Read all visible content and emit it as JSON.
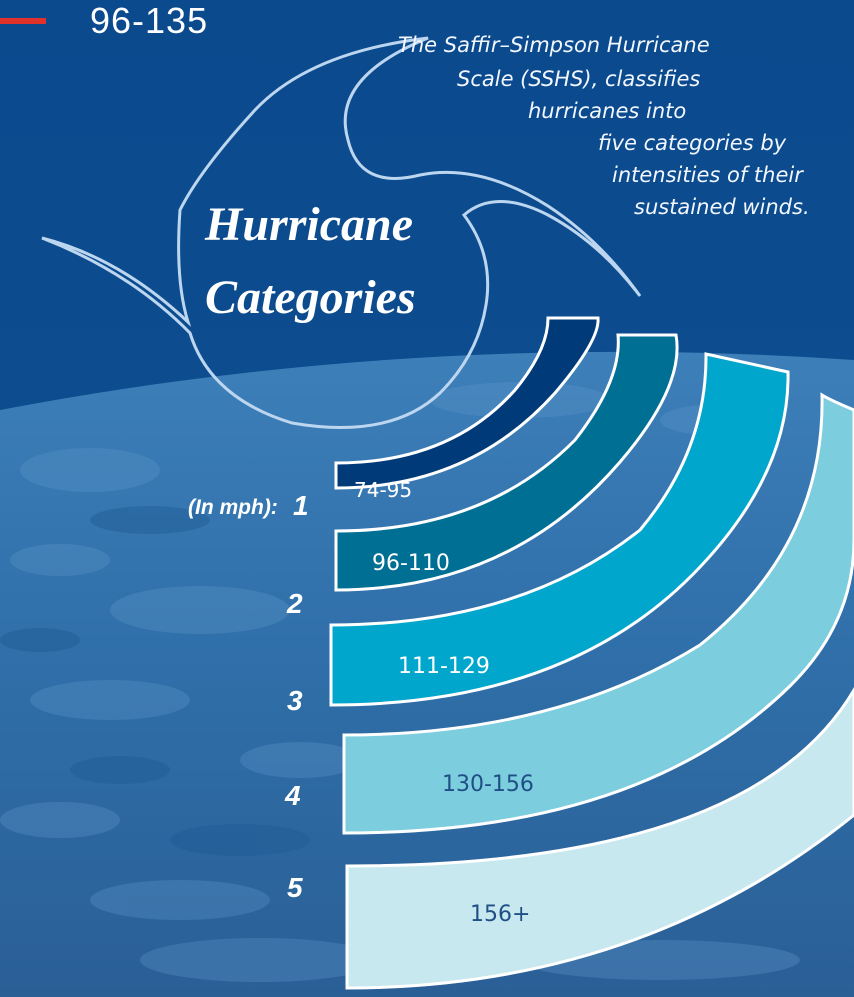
{
  "top_range_text": "96-135",
  "intro_lines": [
    "The Saffir–Simpson Hurricane",
    "Scale (SSHS), classifies",
    "hurricanes into",
    "five categories by",
    "intensities of their",
    "sustained winds."
  ],
  "title_lines": [
    "Hurricane",
    "Categories"
  ],
  "unit_label": "(In mph):",
  "categories": [
    {
      "number": "1",
      "range": "74-95",
      "color": "#003a78"
    },
    {
      "number": "2",
      "range": "96-110",
      "color": "#006f94"
    },
    {
      "number": "3",
      "range": "111-129",
      "color": "#00a6cc"
    },
    {
      "number": "4",
      "range": "130-156",
      "color": "#7ccddd"
    },
    {
      "number": "5",
      "range": "156+",
      "color": "#c8e8ef"
    }
  ],
  "colors": {
    "sky": "#0a4a8c",
    "accent_red": "#e1312b",
    "outline": "#bcd6f0"
  }
}
